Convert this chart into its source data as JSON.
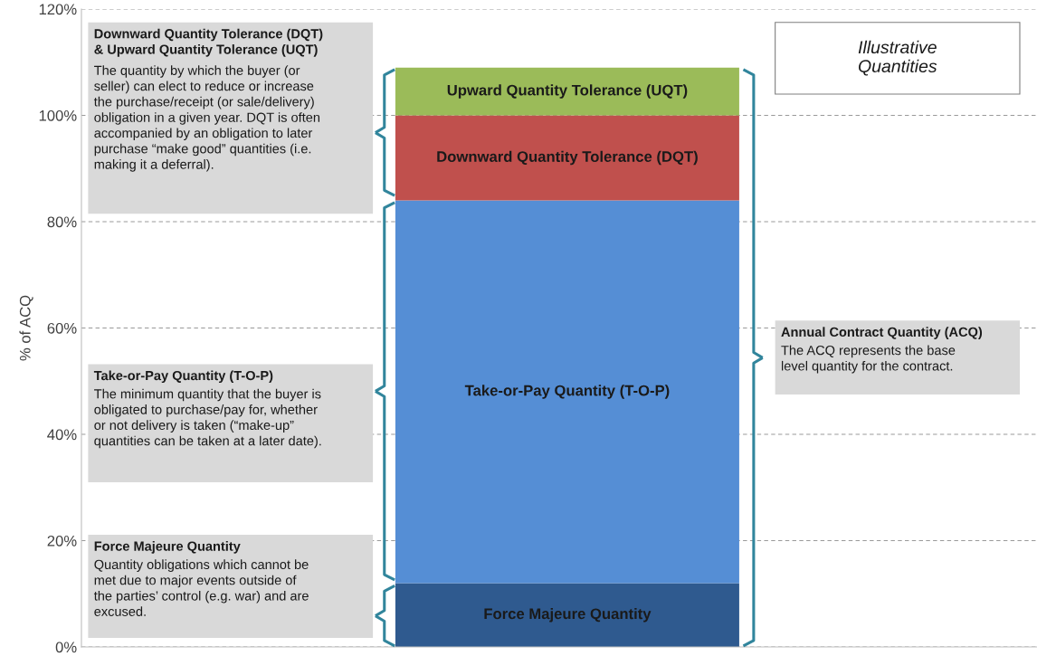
{
  "chart_data": {
    "type": "bar",
    "stacked": true,
    "categories": [
      null
    ],
    "ylabel": "% of ACQ",
    "series": [
      {
        "name": "Force Majeure Quantity",
        "color": "#2f5a8f",
        "values": [
          12
        ]
      },
      {
        "name": "Take-or-Pay Quantity (T-O-P)",
        "color": "#558ed5",
        "values": [
          72
        ]
      },
      {
        "name": "Downward Quantity Tolerance (DQT)",
        "color": "#c0504d",
        "values": [
          16
        ]
      },
      {
        "name": "Upward Quantity Tolerance (UQT)",
        "color": "#9bbb59",
        "values": [
          9
        ]
      }
    ],
    "ylim": [
      0,
      120
    ],
    "yticks": [
      {
        "value": 0,
        "label": "0%"
      },
      {
        "value": 20,
        "label": "20%"
      },
      {
        "value": 40,
        "label": "40%"
      },
      {
        "value": 60,
        "label": "60%"
      },
      {
        "value": 80,
        "label": "80%"
      },
      {
        "value": 100,
        "label": "100%"
      },
      {
        "value": 120,
        "label": "120%"
      }
    ],
    "grid": "y",
    "tick_labels": "y",
    "annotations": [
      "Downward Quantity Tolerance (DQT)\n& Upward Quantity Tolerance (UQT)",
      "The quantity by which the buyer (or\nseller) can elect to reduce or increase\nthe purchase/receipt (or sale/delivery)\nobligation in a given year. DQT is often\naccompanied by an obligation to later\npurchase “make good” quantities (i.e.\nmaking it a deferral).",
      "Take-or-Pay Quantity (T-O-P)",
      "The minimum quantity that the buyer is\nobligated to purchase/pay for, whether\nor not delivery is taken (“make-up”\nquantities can be taken at a later date).",
      "Force Majeure Quantity",
      "Quantity obligations which cannot be\nmet due to major events outside of\nthe parties’ control (e.g. war) and are\nexcused.",
      "Annual Contract Quantity (ACQ)",
      "The ACQ represents the base\nlevel quantity for the contract.",
      "Illustrative\nQuantities"
    ]
  }
}
